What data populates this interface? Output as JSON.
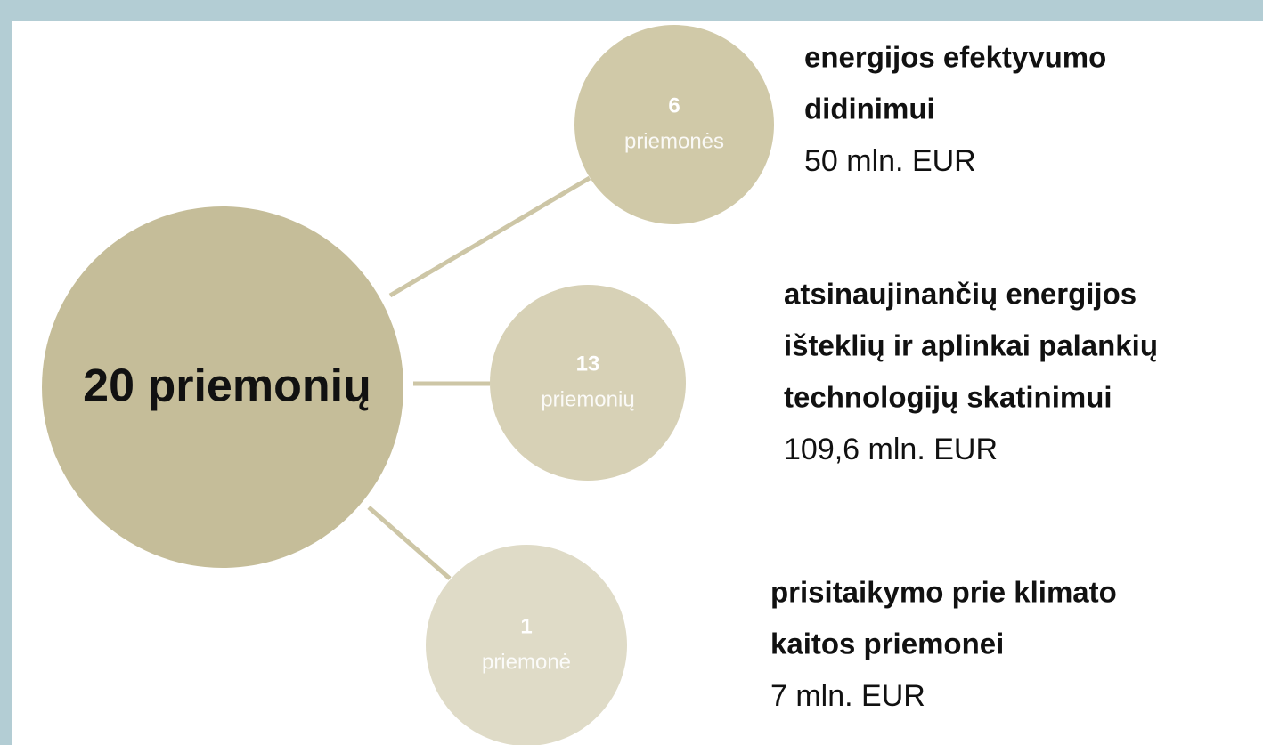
{
  "center": {
    "label": "20 priemonių"
  },
  "nodes": [
    {
      "count": "6",
      "unit": "priemonės",
      "title": [
        "energijos efektyvumo",
        "didinimui"
      ],
      "amount": "50 mln. EUR"
    },
    {
      "count": "13",
      "unit": "priemonių",
      "title": [
        "atsinaujinančių energijos",
        "išteklių ir aplinkai palankių",
        "technologijų skatinimui"
      ],
      "amount": "109,6 mln. EUR"
    },
    {
      "count": "1",
      "unit": "priemonė",
      "title": [
        "prisitaikymo prie klimato",
        "kaitos priemonei"
      ],
      "amount": "7 mln. EUR"
    }
  ]
}
